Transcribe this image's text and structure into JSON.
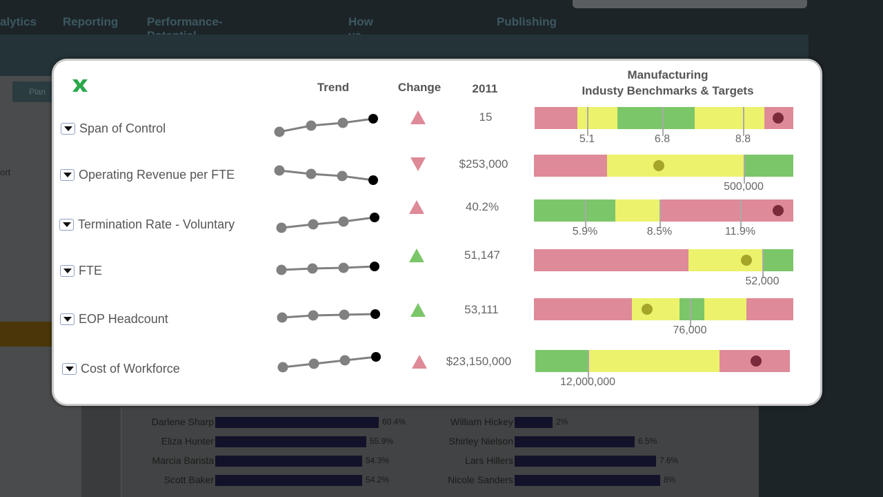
{
  "nav": [
    "alytics",
    "Reporting",
    "Performance-Potential Matrix",
    "How vs. What Matrix",
    "Publishing"
  ],
  "background": {
    "tab_label": "Plan",
    "side_text": "ort"
  },
  "panel": {
    "excel_icon": "excel-export-icon",
    "headers": {
      "trend": "Trend",
      "change": "Change",
      "year": "2011",
      "benchmark_line1": "Manufacturing",
      "benchmark_line2": "Industy Benchmarks & Targets"
    },
    "colors": {
      "red": "#de8a98",
      "yellow": "#ecf26b",
      "green": "#7cc66a",
      "dot_bad": "#7a2a3a",
      "dot_ok": "#a5a52a",
      "up_bad": "#de8a98",
      "up_good": "#7cc66a"
    },
    "rows": [
      {
        "label": "Span of Control",
        "change": "up-bad",
        "value": "15",
        "bands": [
          "red",
          "yellow",
          "green",
          "yellow",
          "red"
        ],
        "ticks": [
          "5.1",
          "6.8",
          "8.8"
        ]
      },
      {
        "label": "Operating Revenue per FTE",
        "change": "down-bad",
        "value": "$253,000",
        "bands": [
          "red",
          "yellow",
          "green"
        ],
        "ticks": [
          "500,000"
        ]
      },
      {
        "label": "Termination Rate - Voluntary",
        "change": "up-bad",
        "value": "40.2%",
        "bands": [
          "green",
          "yellow",
          "red"
        ],
        "ticks": [
          "5.9%",
          "8.5%",
          "11.9%"
        ]
      },
      {
        "label": "FTE",
        "change": "up-good",
        "value": "51,147",
        "bands": [
          "red",
          "yellow",
          "green"
        ],
        "ticks": [
          "52,000"
        ]
      },
      {
        "label": "EOP Headcount",
        "change": "up-good",
        "value": "53,111",
        "bands": [
          "red",
          "yellow",
          "green",
          "yellow",
          "red"
        ],
        "ticks": [
          "76,000"
        ]
      },
      {
        "label": "Cost of Workforce",
        "change": "up-bad",
        "value": "$23,150,000",
        "bands": [
          "green",
          "yellow",
          "red"
        ],
        "ticks": [
          "12,000,000"
        ]
      }
    ]
  },
  "people_left": [
    {
      "name": "Darlene Sharp",
      "value": "60.4%"
    },
    {
      "name": "Eliza Hunter",
      "value": "55.9%"
    },
    {
      "name": "Marcia Barista",
      "value": "54.3%"
    },
    {
      "name": "Scott Baker",
      "value": "54.2%"
    }
  ],
  "people_right": [
    {
      "name": "William Hickey",
      "value": "2%"
    },
    {
      "name": "Shirley Nielson",
      "value": "6.5%"
    },
    {
      "name": "Lars Hillers",
      "value": "7.6%"
    },
    {
      "name": "Nicole Sanders",
      "value": "8%"
    }
  ]
}
